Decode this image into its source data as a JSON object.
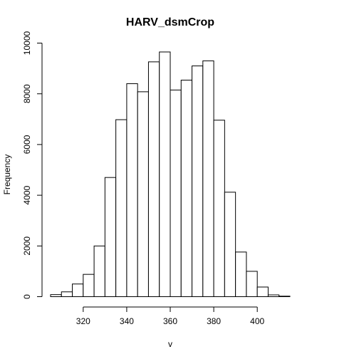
{
  "chart_data": {
    "type": "bar",
    "title": "HARV_dsmCrop",
    "xlabel": "v",
    "ylabel": "Frequency",
    "bin_width": 5,
    "bins": [
      {
        "x0": 305,
        "x1": 310,
        "count": 80
      },
      {
        "x0": 310,
        "x1": 315,
        "count": 190
      },
      {
        "x0": 315,
        "x1": 320,
        "count": 500
      },
      {
        "x0": 320,
        "x1": 325,
        "count": 880
      },
      {
        "x0": 325,
        "x1": 330,
        "count": 2000
      },
      {
        "x0": 330,
        "x1": 335,
        "count": 4700
      },
      {
        "x0": 335,
        "x1": 340,
        "count": 6980
      },
      {
        "x0": 340,
        "x1": 345,
        "count": 8400
      },
      {
        "x0": 345,
        "x1": 350,
        "count": 8080
      },
      {
        "x0": 350,
        "x1": 355,
        "count": 9260
      },
      {
        "x0": 355,
        "x1": 360,
        "count": 9650
      },
      {
        "x0": 360,
        "x1": 365,
        "count": 8150
      },
      {
        "x0": 365,
        "x1": 370,
        "count": 8540
      },
      {
        "x0": 370,
        "x1": 375,
        "count": 9100
      },
      {
        "x0": 375,
        "x1": 380,
        "count": 9300
      },
      {
        "x0": 380,
        "x1": 385,
        "count": 6960
      },
      {
        "x0": 385,
        "x1": 390,
        "count": 4120
      },
      {
        "x0": 390,
        "x1": 395,
        "count": 1760
      },
      {
        "x0": 395,
        "x1": 400,
        "count": 1000
      },
      {
        "x0": 400,
        "x1": 405,
        "count": 380
      },
      {
        "x0": 405,
        "x1": 410,
        "count": 70
      },
      {
        "x0": 410,
        "x1": 415,
        "count": 20
      }
    ],
    "xticks": [
      320,
      340,
      360,
      380,
      400
    ],
    "yticks": [
      0,
      2000,
      4000,
      6000,
      8000,
      10000
    ],
    "ylim": [
      0,
      10000
    ],
    "grid": false,
    "legend": "none"
  }
}
